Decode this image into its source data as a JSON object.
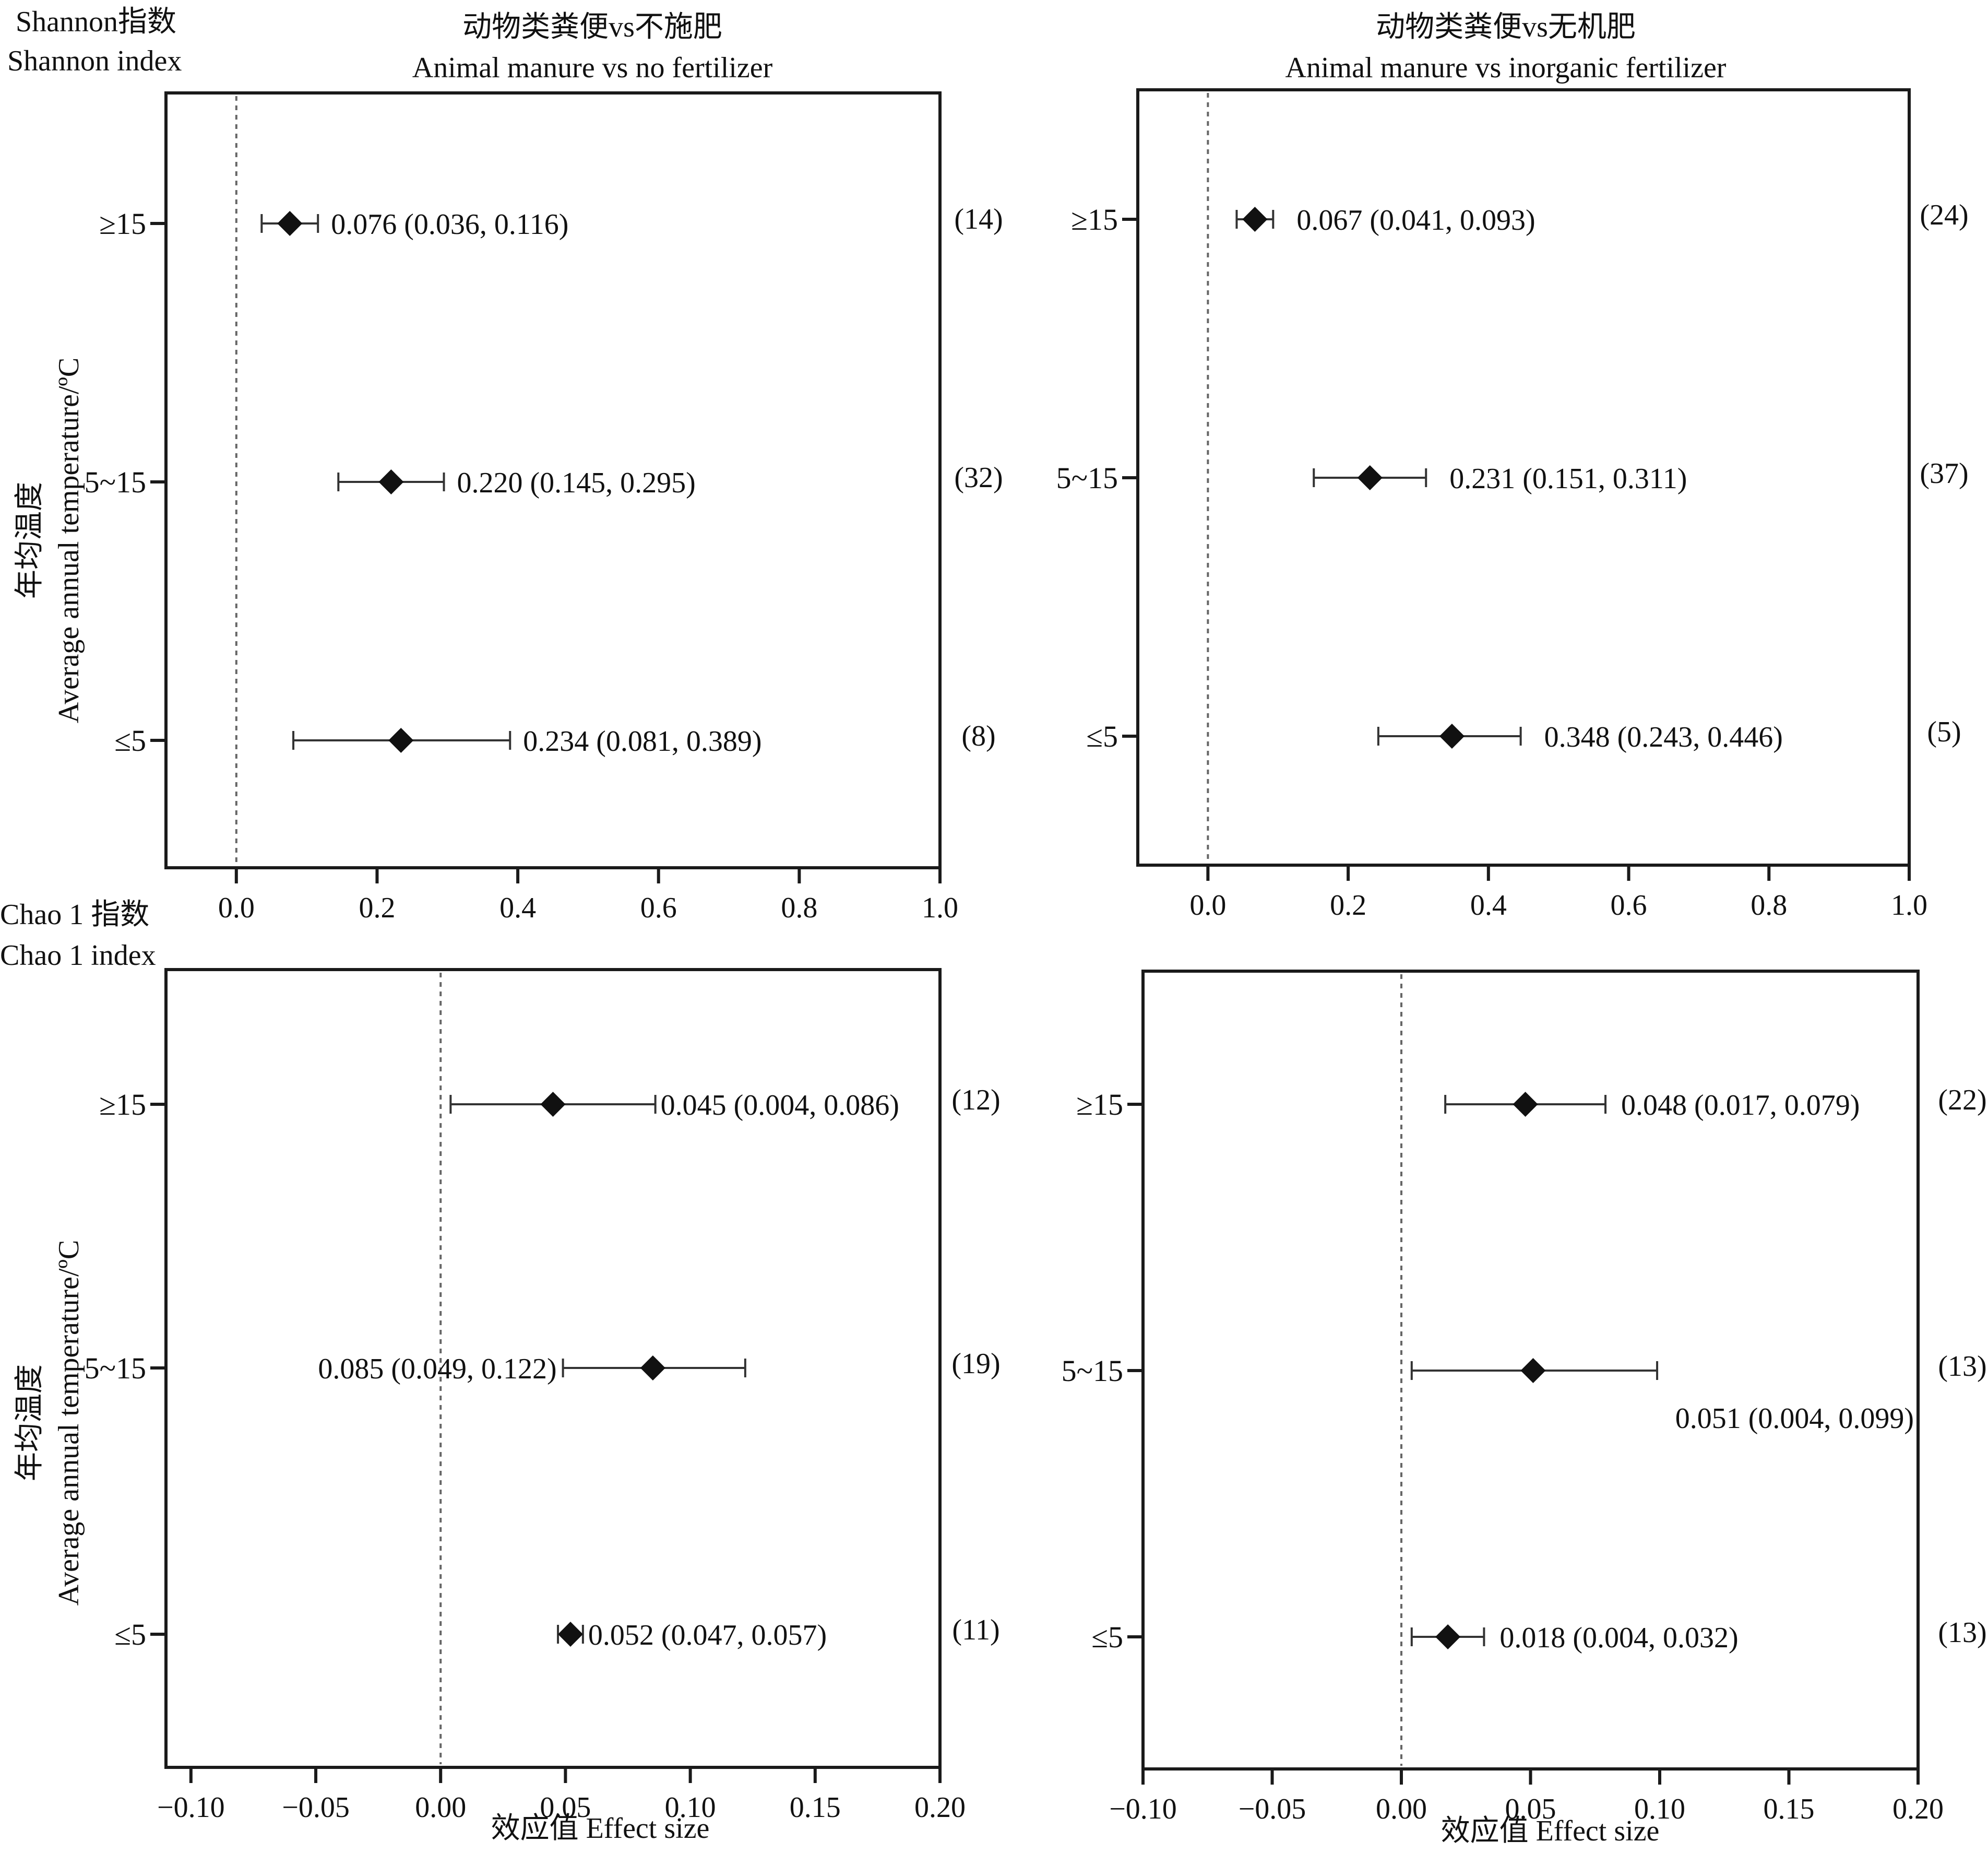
{
  "corner_labels": {
    "shannon_zh": "Shannon指数",
    "shannon_en": "Shannon index",
    "chao_zh": "Chao 1 指数",
    "chao_en": "Chao 1 index"
  },
  "column_titles": {
    "left_zh": "动物类粪便vs不施肥",
    "left_en": "Animal manure vs no fertilizer",
    "right_zh": "动物类粪便vs无机肥",
    "right_en": "Animal manure vs inorganic fertilizer"
  },
  "ylabel": {
    "zh": "年均温度",
    "en": "Average annual temperature/ºC"
  },
  "xlabel": "效应值 Effect size",
  "chart_data": [
    {
      "type": "scatter",
      "index": "Shannon",
      "comparison": "Animal manure vs no fertilizer",
      "xlim": [
        -0.1,
        1.0
      ],
      "xticks": [
        "0.0",
        "0.2",
        "0.4",
        "0.6",
        "0.8",
        "1.0"
      ],
      "categories": [
        "≥15",
        "5~15",
        "≤5"
      ],
      "points": [
        {
          "category": "≥15",
          "mean": 0.076,
          "lower": 0.036,
          "upper": 0.116,
          "label": "0.076 (0.036, 0.116)",
          "n": "(14)"
        },
        {
          "category": "5~15",
          "mean": 0.22,
          "lower": 0.145,
          "upper": 0.295,
          "label": "0.220 (0.145, 0.295)",
          "n": "(32)"
        },
        {
          "category": "≤5",
          "mean": 0.234,
          "lower": 0.081,
          "upper": 0.389,
          "label": "0.234 (0.081, 0.389)",
          "n": "(8)"
        }
      ],
      "reference_line": 0
    },
    {
      "type": "scatter",
      "index": "Shannon",
      "comparison": "Animal manure vs inorganic fertilizer",
      "xlim": [
        -0.1,
        1.0
      ],
      "xticks": [
        "0.0",
        "0.2",
        "0.4",
        "0.6",
        "0.8",
        "1.0"
      ],
      "categories": [
        "≥15",
        "5~15",
        "≤5"
      ],
      "points": [
        {
          "category": "≥15",
          "mean": 0.067,
          "lower": 0.041,
          "upper": 0.093,
          "label": "0.067 (0.041, 0.093)",
          "n": "(24)"
        },
        {
          "category": "5~15",
          "mean": 0.231,
          "lower": 0.151,
          "upper": 0.311,
          "label": "0.231 (0.151, 0.311)",
          "n": "(37)"
        },
        {
          "category": "≤5",
          "mean": 0.348,
          "lower": 0.243,
          "upper": 0.446,
          "label": "0.348 (0.243, 0.446)",
          "n": "(5)"
        }
      ],
      "reference_line": 0
    },
    {
      "type": "scatter",
      "index": "Chao 1",
      "comparison": "Animal manure vs no fertilizer",
      "xlim": [
        -0.11,
        0.2
      ],
      "xticks": [
        "−0.10",
        "−0.05",
        "0.00",
        "0.05",
        "0.10",
        "0.15",
        "0.20"
      ],
      "categories": [
        "≥15",
        "5~15",
        "≤5"
      ],
      "points": [
        {
          "category": "≥15",
          "mean": 0.045,
          "lower": 0.004,
          "upper": 0.086,
          "label": "0.045 (0.004, 0.086)",
          "n": "(12)"
        },
        {
          "category": "5~15",
          "mean": 0.085,
          "lower": 0.049,
          "upper": 0.122,
          "label": "0.085 (0.049, 0.122)",
          "n": "(19)"
        },
        {
          "category": "≤5",
          "mean": 0.052,
          "lower": 0.047,
          "upper": 0.057,
          "label": "0.052 (0.047, 0.057)",
          "n": "(11)"
        }
      ],
      "reference_line": 0
    },
    {
      "type": "scatter",
      "index": "Chao 1",
      "comparison": "Animal manure vs inorganic fertilizer",
      "xlim": [
        -0.1,
        0.2
      ],
      "xticks": [
        "−0.10",
        "−0.05",
        "0.00",
        "0.05",
        "0.10",
        "0.15",
        "0.20"
      ],
      "categories": [
        "≥15",
        "5~15",
        "≤5"
      ],
      "points": [
        {
          "category": "≥15",
          "mean": 0.048,
          "lower": 0.017,
          "upper": 0.079,
          "label": "0.048 (0.017, 0.079)",
          "n": "(22)"
        },
        {
          "category": "5~15",
          "mean": 0.051,
          "lower": 0.004,
          "upper": 0.099,
          "label": "0.051 (0.004, 0.099)",
          "n": "(13)"
        },
        {
          "category": "≤5",
          "mean": 0.018,
          "lower": 0.004,
          "upper": 0.032,
          "label": "0.018 (0.004, 0.032)",
          "n": "(13)"
        }
      ],
      "reference_line": 0
    }
  ]
}
